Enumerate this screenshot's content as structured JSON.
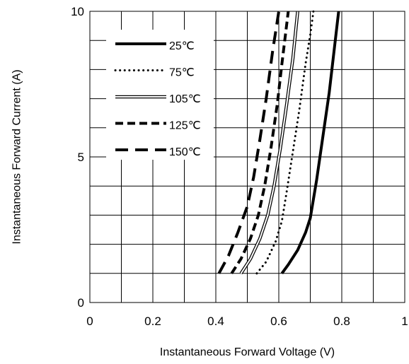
{
  "chart_data": {
    "type": "line",
    "title": "",
    "xlabel": "Instantaneous Forward Voltage (V)",
    "ylabel": "Instantaneous Forward Current (A)",
    "xlim": [
      0,
      1
    ],
    "ylim": [
      0,
      10
    ],
    "x_ticks": [
      "0",
      "0.2",
      "0.4",
      "0.6",
      "0.8",
      "1"
    ],
    "y_ticks": [
      "0",
      "5",
      "10"
    ],
    "grid": true,
    "legend_position": "top-left",
    "series": [
      {
        "name": "25℃",
        "style": "solid-thick",
        "points": [
          [
            0.61,
            1
          ],
          [
            0.63,
            1.3
          ],
          [
            0.66,
            1.8
          ],
          [
            0.685,
            2.4
          ],
          [
            0.7,
            2.9
          ],
          [
            0.72,
            4.2
          ],
          [
            0.74,
            5.7
          ],
          [
            0.76,
            7.2
          ],
          [
            0.775,
            8.6
          ],
          [
            0.79,
            10
          ]
        ]
      },
      {
        "name": "75℃",
        "style": "dotted",
        "points": [
          [
            0.53,
            1
          ],
          [
            0.56,
            1.4
          ],
          [
            0.59,
            2.1
          ],
          [
            0.61,
            2.8
          ],
          [
            0.625,
            3.8
          ],
          [
            0.645,
            5.2
          ],
          [
            0.665,
            6.6
          ],
          [
            0.685,
            8.2
          ],
          [
            0.7,
            9.2
          ],
          [
            0.71,
            10
          ]
        ]
      },
      {
        "name": "105℃",
        "style": "double",
        "points": [
          [
            0.48,
            1
          ],
          [
            0.51,
            1.5
          ],
          [
            0.54,
            2.2
          ],
          [
            0.565,
            3.0
          ],
          [
            0.585,
            4.0
          ],
          [
            0.605,
            5.3
          ],
          [
            0.625,
            6.8
          ],
          [
            0.645,
            8.4
          ],
          [
            0.66,
            10
          ]
        ]
      },
      {
        "name": "125℃",
        "style": "dashed",
        "points": [
          [
            0.45,
            1
          ],
          [
            0.48,
            1.5
          ],
          [
            0.51,
            2.2
          ],
          [
            0.535,
            3.0
          ],
          [
            0.555,
            4.0
          ],
          [
            0.575,
            5.3
          ],
          [
            0.595,
            6.8
          ],
          [
            0.61,
            8.2
          ],
          [
            0.63,
            10
          ]
        ]
      },
      {
        "name": "150℃",
        "style": "long-dashed",
        "points": [
          [
            0.41,
            1
          ],
          [
            0.44,
            1.6
          ],
          [
            0.47,
            2.4
          ],
          [
            0.5,
            3.3
          ],
          [
            0.52,
            4.3
          ],
          [
            0.54,
            5.6
          ],
          [
            0.56,
            7.0
          ],
          [
            0.58,
            8.6
          ],
          [
            0.6,
            10
          ]
        ]
      }
    ]
  }
}
